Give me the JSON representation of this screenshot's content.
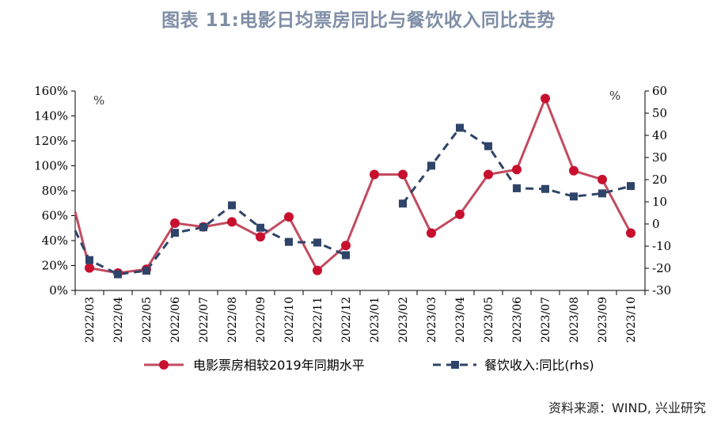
{
  "title": "图表 11:电影日均票房同比与餐饮收入同比走势",
  "source": "资料来源：WIND, 兴业研究",
  "colors": {
    "movie": "#c8102e",
    "movie_line": "#c24b5f",
    "food": "#2e4468"
  },
  "chart_data": {
    "type": "line",
    "categories": [
      "2022/03",
      "2022/04",
      "2022/05",
      "2022/06",
      "2022/07",
      "2022/08",
      "2022/09",
      "2022/10",
      "2022/11",
      "2022/12",
      "2023/01",
      "2023/02",
      "2023/03",
      "2023/04",
      "2023/05",
      "2023/06",
      "2023/07",
      "2023/08",
      "2023/09",
      "2023/10"
    ],
    "left_unit": "%",
    "right_unit": "%",
    "left_ticks": [
      "0%",
      "20%",
      "40%",
      "60%",
      "80%",
      "100%",
      "120%",
      "140%",
      "160%"
    ],
    "right_ticks": [
      "-30",
      "-20",
      "-10",
      "0",
      "10",
      "20",
      "30",
      "40",
      "50",
      "60"
    ],
    "left_ylim": [
      0,
      160
    ],
    "right_ylim": [
      -30,
      60
    ],
    "line_start_left": 63,
    "line_start_right": -3,
    "series": [
      {
        "name": "电影票房相较2019年同期水平",
        "axis": "left",
        "values": [
          18,
          14,
          17,
          54,
          51,
          55,
          43,
          59,
          16,
          36,
          93,
          93,
          46,
          61,
          93,
          97,
          154,
          96,
          89,
          46
        ]
      },
      {
        "name": "餐饮收入:同比(rhs)",
        "axis": "right",
        "values": [
          -16.3,
          -22.7,
          -21.1,
          -4,
          -1.5,
          8.4,
          -1.7,
          -8.1,
          -8.4,
          -14.1,
          null,
          9.2,
          26.3,
          43.4,
          35.1,
          16.1,
          15.8,
          12.4,
          13.8,
          17.1
        ]
      }
    ]
  }
}
